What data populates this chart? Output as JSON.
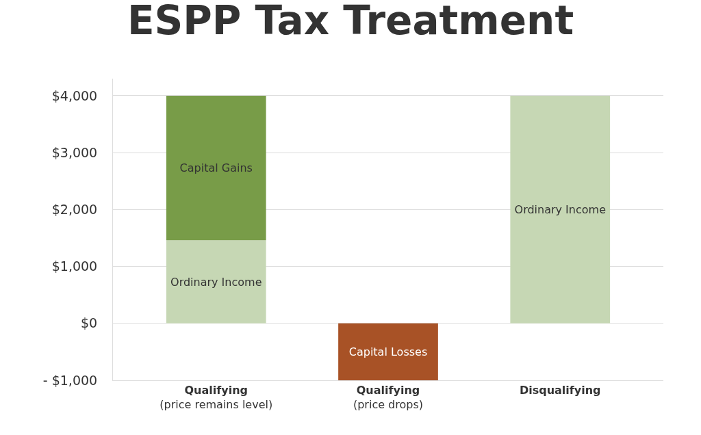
{
  "chart_data": {
    "type": "bar",
    "title": "ESPP Tax Treatment",
    "categories": [
      "Qualifying\n(price remains level)",
      "Qualifying\n(price drops)",
      "Disqualifying"
    ],
    "stacked": true,
    "series": [
      {
        "name": "Ordinary Income",
        "color": "#c6d7b4",
        "values": [
          1460,
          null,
          4000
        ]
      },
      {
        "name": "Capital Gains",
        "color": "#789c48",
        "values": [
          2540,
          null,
          null
        ]
      },
      {
        "name": "Capital Losses",
        "color": "#a85226",
        "values": [
          null,
          -1000,
          null
        ]
      }
    ],
    "ylim": [
      -1000,
      4300
    ],
    "yticks": [
      {
        "value": -1000,
        "label": "- $1,000"
      },
      {
        "value": 0,
        "label": "$0"
      },
      {
        "value": 1000,
        "label": "$1,000"
      },
      {
        "value": 2000,
        "label": "$2,000"
      },
      {
        "value": 3000,
        "label": "$3,000"
      },
      {
        "value": 4000,
        "label": "$4,000"
      }
    ],
    "grid": "y",
    "legend": false
  }
}
